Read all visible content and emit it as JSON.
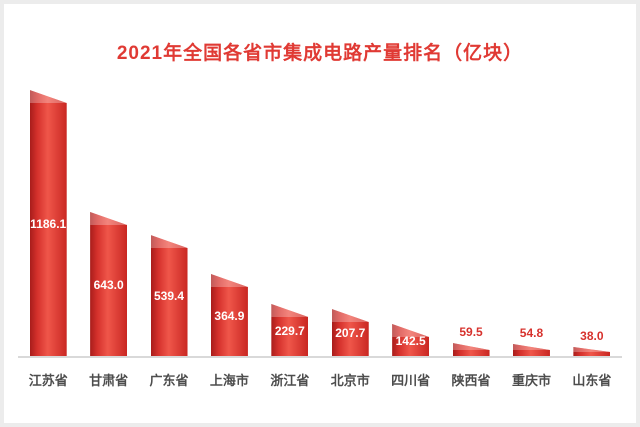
{
  "frame": {
    "background": "#ffffff",
    "border_color": "#ececec"
  },
  "chart_data": {
    "type": "bar",
    "title": "2021年全国各省市集成电路产量排名（亿块）",
    "unit": "亿块",
    "categories": [
      "江苏省",
      "甘肃省",
      "广东省",
      "上海市",
      "浙江省",
      "北京市",
      "四川省",
      "陕西省",
      "重庆市",
      "山东省"
    ],
    "values": [
      1186.1,
      643.0,
      539.4,
      364.9,
      229.7,
      207.7,
      142.5,
      59.5,
      54.8,
      38.0
    ],
    "value_labels": [
      "1186.1",
      "643.0",
      "539.4",
      "364.9",
      "229.7",
      "207.7",
      "142.5",
      "59.5",
      "54.8",
      "38.0"
    ],
    "ylim": [
      0,
      1200
    ],
    "grid": false,
    "legend": false,
    "colors": {
      "title": "#e03a34",
      "bar_main": "#d7322d",
      "value_label_inside": "#ffffff",
      "value_label_outside": "#d7322d",
      "category_label": "#4d4d4d",
      "axis_line": "#d9d9d9"
    }
  }
}
